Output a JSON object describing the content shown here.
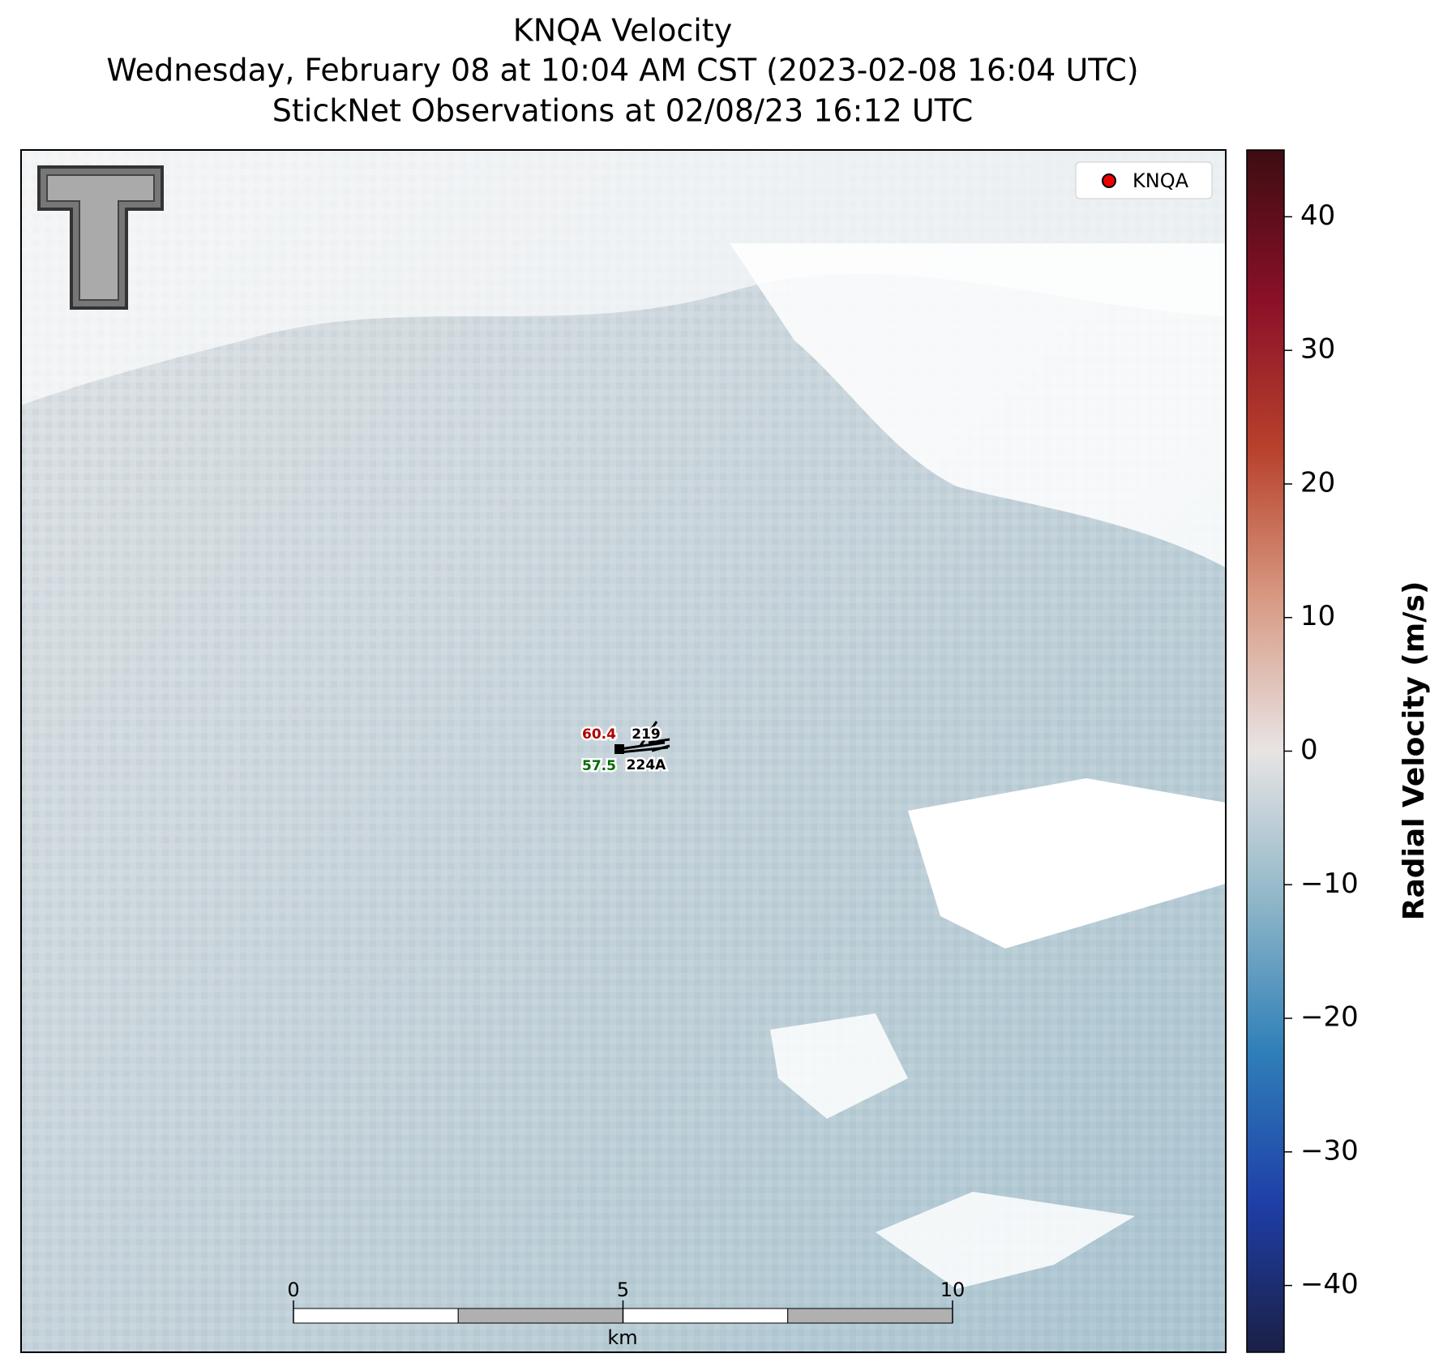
{
  "title_lines": [
    "KNQA Velocity",
    "Wednesday, February 08 at 10:04 AM CST (2023-02-08 16:04 UTC)",
    "StickNet Observations at 02/08/23 16:12 UTC"
  ],
  "colorbar": {
    "label": "Radial Velocity (m/s)",
    "lim": [
      -45,
      45
    ],
    "ticks": [
      {
        "value": -40,
        "label": "−40"
      },
      {
        "value": -30,
        "label": "−30"
      },
      {
        "value": -20,
        "label": "−20"
      },
      {
        "value": -10,
        "label": "−10"
      },
      0,
      10,
      20,
      30,
      40
    ],
    "colors": [
      "#1a1f45",
      "#1f3fa8",
      "#2f7fb8",
      "#8fb6c8",
      "#e8e4e4",
      "#d89b85",
      "#b8422c",
      "#8a1028",
      "#3d0d12"
    ]
  },
  "legend": {
    "label": "KNQA",
    "color": "#ee0000"
  },
  "scale_bar": {
    "ticks": [
      0,
      5,
      10
    ],
    "unit": "km",
    "segments": 4
  },
  "station": {
    "id": "224A",
    "temperature": 60.4,
    "dewpoint": 57.5,
    "code": 219,
    "temperature_color": "#b00000",
    "dewpoint_color": "#006a00"
  }
}
